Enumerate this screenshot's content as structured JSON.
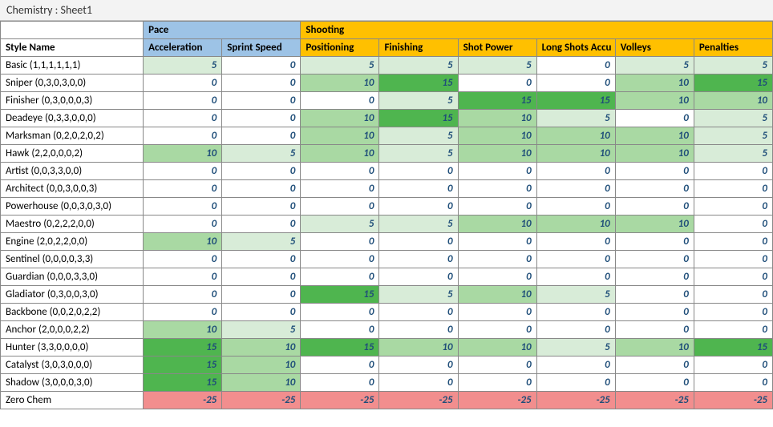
{
  "title": "Chemistry : Sheet1",
  "columns": {
    "style_header": "Style Name",
    "groups": [
      {
        "label": "Pace",
        "span": 2,
        "class": "group-pace",
        "subclass": "sub-pace",
        "subs": [
          "Acceleration",
          "Sprint Speed"
        ]
      },
      {
        "label": "Shooting",
        "span": 6,
        "class": "group-shoot",
        "subclass": "sub-shoot",
        "subs": [
          "Positioning",
          "Finishing",
          "Shot Power",
          "Long Shots Accu",
          "Volleys",
          "Penalties"
        ]
      }
    ]
  },
  "col_widths": {
    "name": 178,
    "data": 98
  },
  "rows": [
    {
      "name": "Basic (1,1,1,1,1,1)",
      "v": [
        5,
        0,
        5,
        5,
        5,
        0,
        5,
        5
      ]
    },
    {
      "name": "Sniper (0,3,0,3,0,0)",
      "v": [
        0,
        0,
        10,
        15,
        0,
        0,
        10,
        15
      ]
    },
    {
      "name": "Finisher (0,3,0,0,0,3)",
      "v": [
        0,
        0,
        0,
        5,
        15,
        15,
        10,
        10
      ]
    },
    {
      "name": "Deadeye (0,3,3,0,0,0)",
      "v": [
        0,
        0,
        10,
        15,
        10,
        5,
        0,
        5
      ]
    },
    {
      "name": "Marksman (0,2,0,2,0,2)",
      "v": [
        0,
        0,
        10,
        5,
        10,
        10,
        10,
        5
      ]
    },
    {
      "name": "Hawk (2,2,0,0,0,2)",
      "v": [
        10,
        5,
        10,
        5,
        10,
        10,
        10,
        5
      ]
    },
    {
      "name": "Artist (0,0,3,3,0,0)",
      "v": [
        0,
        0,
        0,
        0,
        0,
        0,
        0,
        0
      ]
    },
    {
      "name": "Architect (0,0,3,0,0,3)",
      "v": [
        0,
        0,
        0,
        0,
        0,
        0,
        0,
        0
      ]
    },
    {
      "name": "Powerhouse (0,0,3,0,3,0)",
      "v": [
        0,
        0,
        0,
        0,
        0,
        0,
        0,
        0
      ]
    },
    {
      "name": "Maestro (0,2,2,2,0,0)",
      "v": [
        0,
        0,
        5,
        5,
        10,
        10,
        10,
        0
      ]
    },
    {
      "name": "Engine (2,0,2,2,0,0)",
      "v": [
        10,
        5,
        0,
        0,
        0,
        0,
        0,
        0
      ]
    },
    {
      "name": "Sentinel (0,0,0,0,3,3)",
      "v": [
        0,
        0,
        0,
        0,
        0,
        0,
        0,
        0
      ]
    },
    {
      "name": "Guardian (0,0,0,3,3,0)",
      "v": [
        0,
        0,
        0,
        0,
        0,
        0,
        0,
        0
      ]
    },
    {
      "name": "Gladiator (0,3,0,0,3,0)",
      "v": [
        0,
        0,
        15,
        5,
        10,
        5,
        0,
        0
      ]
    },
    {
      "name": "Backbone (0,0,2,0,2,2)",
      "v": [
        0,
        0,
        0,
        0,
        0,
        0,
        0,
        0
      ]
    },
    {
      "name": "Anchor (2,0,0,0,2,2)",
      "v": [
        10,
        5,
        0,
        0,
        0,
        0,
        0,
        0
      ]
    },
    {
      "name": "Hunter (3,3,0,0,0,0)",
      "v": [
        15,
        10,
        15,
        10,
        10,
        5,
        10,
        15
      ]
    },
    {
      "name": "Catalyst (3,0,3,0,0,0)",
      "v": [
        15,
        10,
        0,
        0,
        0,
        0,
        0,
        0
      ]
    },
    {
      "name": "Shadow (3,0,0,0,3,0)",
      "v": [
        15,
        10,
        0,
        0,
        0,
        0,
        0,
        0
      ]
    },
    {
      "name": "Zero Chem",
      "v": [
        -25,
        -25,
        -25,
        -25,
        -25,
        -25,
        -25,
        -25
      ]
    }
  ],
  "color_scale": {
    "neg": "#f28e8e",
    "zero": "#ffffff",
    "steps": [
      {
        "min": 1,
        "max": 5,
        "color": "#d8ecd8"
      },
      {
        "min": 6,
        "max": 10,
        "color": "#a9d9a3"
      },
      {
        "min": 11,
        "max": 14,
        "color": "#7cc97a"
      },
      {
        "min": 15,
        "max": 99,
        "color": "#4fb54f"
      }
    ]
  }
}
